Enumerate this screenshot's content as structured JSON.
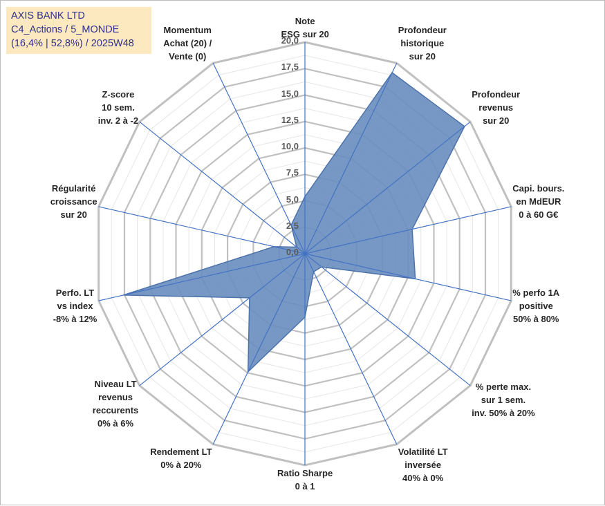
{
  "chart_data": {
    "type": "radar",
    "title_lines": [
      "AXIS BANK LTD",
      "C4_Actions / 5_MONDE",
      "(16,4% | 52,8%) / 2025W48"
    ],
    "r_min": 0,
    "r_max": 20,
    "r_ticks": [
      "0,0",
      "2,5",
      "5,0",
      "7,5",
      "10,0",
      "12,5",
      "15,0",
      "17,5",
      "20,0"
    ],
    "colors": {
      "fill": "#6b8fbf",
      "stroke": "#4c72aa",
      "spoke": "#4472c4",
      "grid_major": "#c0c0c0",
      "grid_minor": "#e6e6e6"
    },
    "axes": [
      {
        "label_lines": [
          "Note",
          "ESG sur 20"
        ],
        "value": 5.4
      },
      {
        "label_lines": [
          "Profondeur",
          "historique",
          "sur 20"
        ],
        "value": 19.0
      },
      {
        "label_lines": [
          "Profondeur",
          "revenus",
          "sur 20"
        ],
        "value": 19.3
      },
      {
        "label_lines": [
          "Capi. bours.",
          "en MdEUR",
          "0 à 60 G€"
        ],
        "value": 10.4
      },
      {
        "label_lines": [
          "% perfo 1A",
          "positive",
          "50% à 80%"
        ],
        "value": 10.7
      },
      {
        "label_lines": [
          "% perte max.",
          "sur 1 sem.",
          "inv. 50% à 20%"
        ],
        "value": 2.0
      },
      {
        "label_lines": [
          "Volatilité LT",
          "inversée",
          "40% à 0%"
        ],
        "value": 1.9
      },
      {
        "label_lines": [
          "Ratio Sharpe",
          "0 à 1"
        ],
        "value": 6.0
      },
      {
        "label_lines": [
          "Rendement LT",
          "0% à 20%"
        ],
        "value": 12.4
      },
      {
        "label_lines": [
          "Niveau LT",
          "revenus",
          "reccurents",
          "0% à 6%"
        ],
        "value": 6.7
      },
      {
        "label_lines": [
          "Perfo. LT",
          "vs index",
          "-8% à 12%"
        ],
        "value": 17.6
      },
      {
        "label_lines": [
          "Régularité",
          "croissance",
          "sur 20"
        ],
        "value": 3.0
      },
      {
        "label_lines": [
          "Z-score",
          "10 sem.",
          "inv. 2 à -2"
        ],
        "value": 1.0
      },
      {
        "label_lines": [
          "Momentum",
          "Achat (20) /",
          "Vente (0)"
        ],
        "value": 3.0
      }
    ]
  }
}
